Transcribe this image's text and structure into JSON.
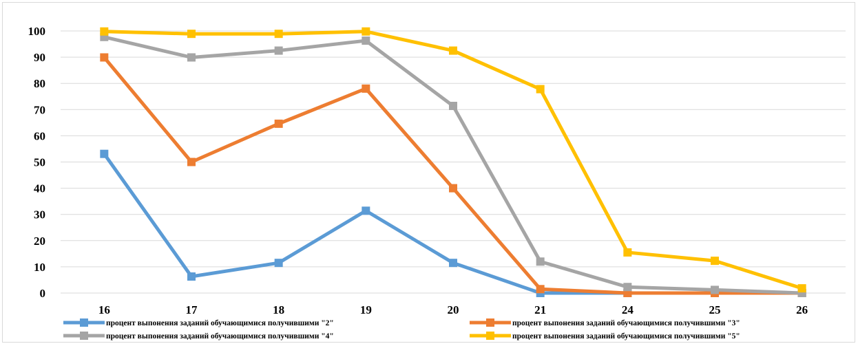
{
  "chart_data": {
    "type": "line",
    "categories": [
      "16",
      "17",
      "18",
      "19",
      "20",
      "21",
      "24",
      "25",
      "26"
    ],
    "ylim": [
      0,
      100
    ],
    "y_ticks": [
      0,
      10,
      20,
      30,
      40,
      50,
      60,
      70,
      80,
      90,
      100
    ],
    "y_tick_labels": [
      "0",
      "10",
      "20",
      "30",
      "40",
      "50",
      "60",
      "70",
      "80",
      "90",
      "100"
    ],
    "grid": "horizontal",
    "legend_position": "bottom",
    "series": [
      {
        "name": "процент выпонения заданий обучающимися получившими \"2\"",
        "color": "#5b9bd5",
        "values": [
          53.1,
          6.3,
          11.5,
          31.4,
          11.5,
          0,
          0,
          0,
          0
        ]
      },
      {
        "name": "процент выпонения заданий обучающимися получившими \"3\"",
        "color": "#ed7d31",
        "values": [
          89.9,
          50,
          64.6,
          78,
          40,
          1.5,
          0,
          0,
          0
        ]
      },
      {
        "name": "процент выпонения заданий обучающимися получившими \"4\"",
        "color": "#a5a5a5",
        "values": [
          97.7,
          89.9,
          92.5,
          96.3,
          71.4,
          12,
          2.3,
          1.2,
          0
        ]
      },
      {
        "name": "процент выпонения заданий обучающимися получившими \"5\"",
        "color": "#ffc000",
        "values": [
          99.8,
          98.9,
          98.9,
          99.8,
          92.5,
          77.8,
          15.5,
          12.3,
          1.8
        ]
      }
    ]
  }
}
